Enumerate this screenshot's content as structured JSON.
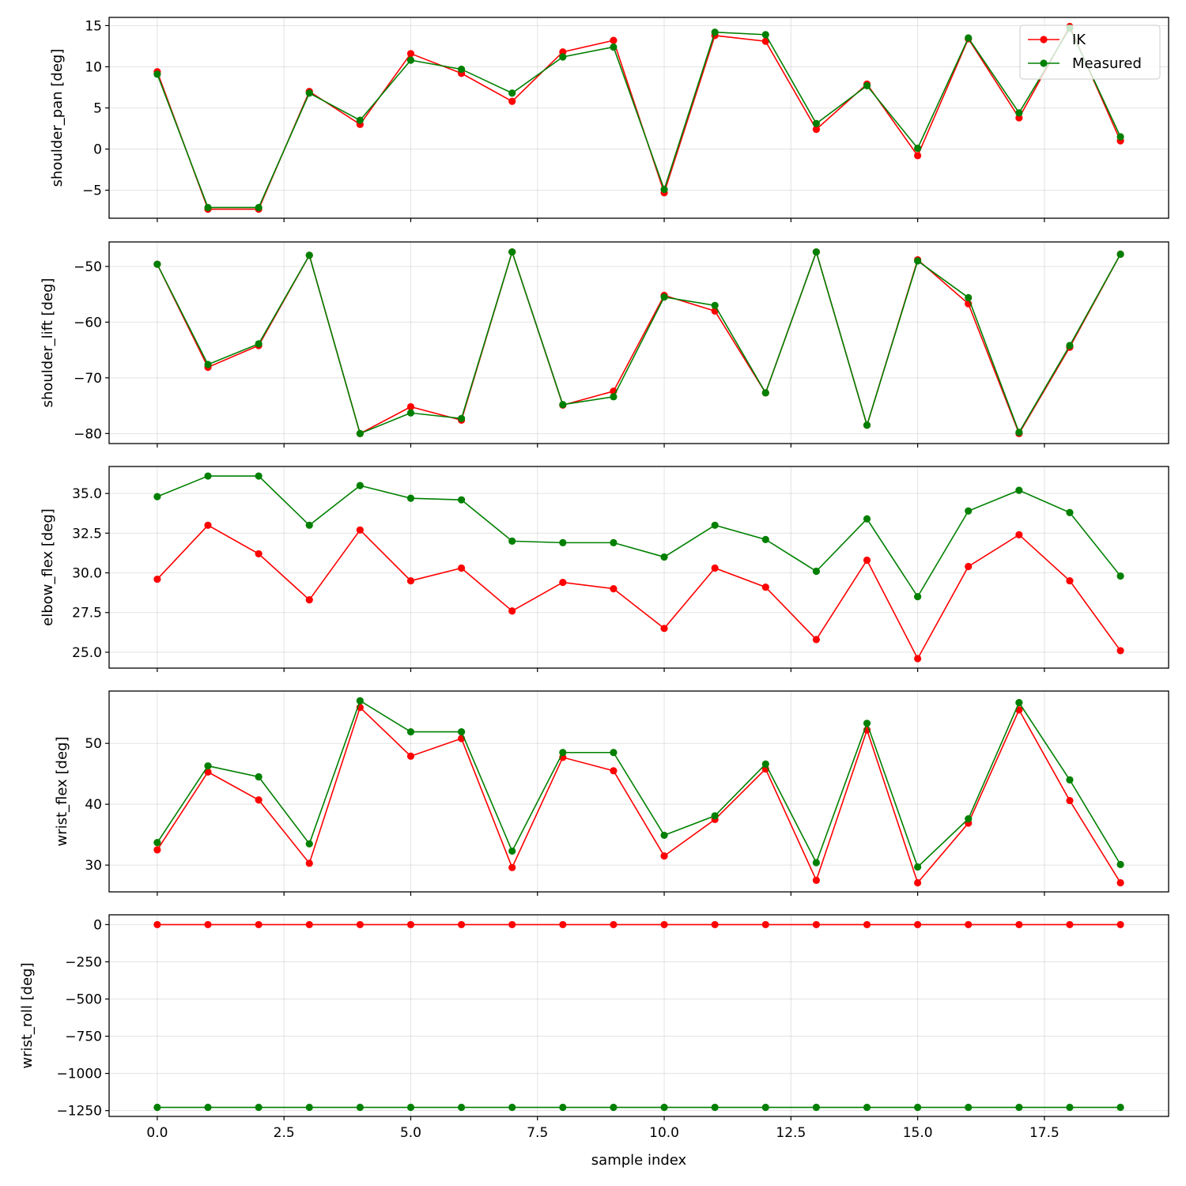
{
  "colors": {
    "IK": "#ff0000",
    "Measured": "#008000"
  },
  "chart_data": {
    "type": "line",
    "xlabel": "sample index",
    "xlim": [
      -0.95,
      19.95
    ],
    "xticks": [
      0.0,
      2.5,
      5.0,
      7.5,
      10.0,
      12.5,
      15.0,
      17.5
    ],
    "xtick_labels": [
      "0.0",
      "2.5",
      "5.0",
      "7.5",
      "10.0",
      "12.5",
      "15.0",
      "17.5"
    ],
    "x": [
      0,
      1,
      2,
      3,
      4,
      5,
      6,
      7,
      8,
      9,
      10,
      11,
      12,
      13,
      14,
      15,
      16,
      17,
      18,
      19
    ],
    "grid": true,
    "legend": {
      "placement": "upper right of top panel",
      "entries": [
        "IK",
        "Measured"
      ]
    },
    "panels": [
      {
        "ylabel": "shoulder_pan [deg]",
        "ylim": [
          -8.4,
          16.0
        ],
        "yticks": [
          -5,
          0,
          5,
          10,
          15
        ],
        "ytick_labels": [
          "−5",
          "0",
          "5",
          "10",
          "15"
        ],
        "series": [
          {
            "name": "IK",
            "values": [
              9.4,
              -7.3,
              -7.3,
              7.0,
              3.0,
              11.6,
              9.2,
              5.8,
              11.8,
              13.2,
              -5.3,
              13.8,
              13.1,
              2.4,
              7.9,
              -0.8,
              13.4,
              3.8,
              14.9,
              1.0
            ]
          },
          {
            "name": "Measured",
            "values": [
              9.1,
              -7.1,
              -7.1,
              6.8,
              3.5,
              10.8,
              9.7,
              6.8,
              11.2,
              12.4,
              -4.9,
              14.2,
              13.9,
              3.1,
              7.7,
              0.1,
              13.5,
              4.4,
              14.7,
              1.5
            ]
          }
        ]
      },
      {
        "ylabel": "shoulder_lift [deg]",
        "ylim": [
          -81.8,
          -45.6
        ],
        "yticks": [
          -80,
          -70,
          -60,
          -50
        ],
        "ytick_labels": [
          "−80",
          "−70",
          "−60",
          "−50"
        ],
        "series": [
          {
            "name": "IK",
            "values": [
              -49.6,
              -68.1,
              -64.2,
              -48.0,
              -80.0,
              -75.2,
              -77.6,
              -47.4,
              -74.9,
              -72.4,
              -55.2,
              -58.0,
              -72.7,
              -47.4,
              -78.5,
              -48.8,
              -56.7,
              -80.0,
              -64.5,
              -47.8
            ]
          },
          {
            "name": "Measured",
            "values": [
              -49.6,
              -67.6,
              -63.9,
              -48.0,
              -80.0,
              -76.3,
              -77.3,
              -47.4,
              -74.8,
              -73.4,
              -55.5,
              -57.0,
              -72.7,
              -47.4,
              -78.5,
              -49.0,
              -55.6,
              -79.8,
              -64.2,
              -47.8
            ]
          }
        ]
      },
      {
        "ylabel": "elbow_flex [deg]",
        "ylim": [
          24.0,
          36.7
        ],
        "yticks": [
          25.0,
          27.5,
          30.0,
          32.5,
          35.0
        ],
        "ytick_labels": [
          "25.0",
          "27.5",
          "30.0",
          "32.5",
          "35.0"
        ],
        "series": [
          {
            "name": "IK",
            "values": [
              29.6,
              33.0,
              31.2,
              28.3,
              32.7,
              29.5,
              30.3,
              27.6,
              29.4,
              29.0,
              26.5,
              30.3,
              29.1,
              25.8,
              30.8,
              24.6,
              30.4,
              32.4,
              29.5,
              25.1
            ]
          },
          {
            "name": "Measured",
            "values": [
              34.8,
              36.1,
              36.1,
              33.0,
              35.5,
              34.7,
              34.6,
              32.0,
              31.9,
              31.9,
              31.0,
              33.0,
              32.1,
              30.1,
              33.4,
              28.5,
              33.9,
              35.2,
              33.8,
              29.8
            ]
          }
        ]
      },
      {
        "ylabel": "wrist_flex [deg]",
        "ylim": [
          25.6,
          58.6
        ],
        "yticks": [
          30,
          40,
          50
        ],
        "ytick_labels": [
          "30",
          "40",
          "50"
        ],
        "series": [
          {
            "name": "IK",
            "values": [
              32.5,
              45.3,
              40.7,
              30.3,
              55.9,
              47.9,
              50.8,
              29.6,
              47.7,
              45.5,
              31.5,
              37.5,
              45.8,
              27.5,
              52.2,
              27.1,
              36.9,
              55.5,
              40.6,
              27.1
            ]
          },
          {
            "name": "Measured",
            "values": [
              33.7,
              46.3,
              44.5,
              33.5,
              57.0,
              51.9,
              51.9,
              32.3,
              48.5,
              48.5,
              34.9,
              38.1,
              46.6,
              30.4,
              53.3,
              29.7,
              37.6,
              56.7,
              44.0,
              30.1
            ]
          }
        ]
      },
      {
        "ylabel": "wrist_roll [deg]",
        "ylim": [
          -1289,
          66
        ],
        "yticks": [
          -1250,
          -1000,
          -750,
          -500,
          -250,
          0
        ],
        "ytick_labels": [
          "−1250",
          "−1000",
          "−750",
          "−500",
          "−250",
          "0"
        ],
        "series": [
          {
            "name": "IK",
            "values": [
              0,
              0,
              0,
              0,
              0,
              0,
              0,
              0,
              0,
              0,
              0,
              0,
              0,
              0,
              0,
              0,
              0,
              0,
              0,
              0
            ]
          },
          {
            "name": "Measured",
            "values": [
              -1228,
              -1228,
              -1228,
              -1228,
              -1228,
              -1228,
              -1228,
              -1228,
              -1228,
              -1228,
              -1228,
              -1228,
              -1228,
              -1228,
              -1228,
              -1228,
              -1228,
              -1228,
              -1228,
              -1228
            ]
          }
        ]
      }
    ]
  }
}
